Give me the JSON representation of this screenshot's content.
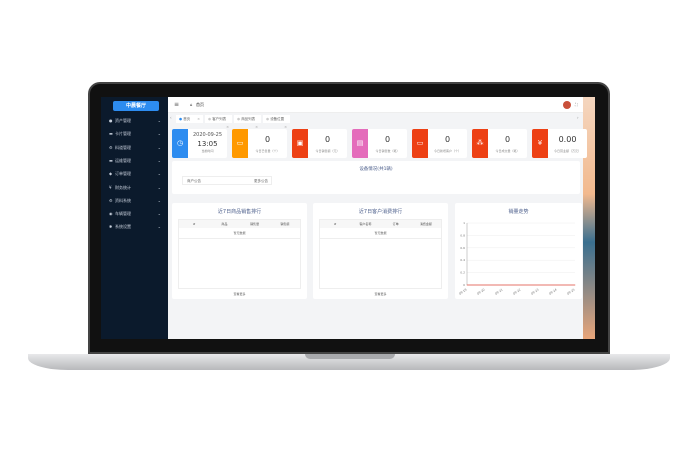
{
  "sidebar": {
    "logo": "中晨餐厅",
    "items": [
      {
        "label": "资产管理",
        "icon": "user-icon"
      },
      {
        "label": "卡片管理",
        "icon": "card-icon"
      },
      {
        "label": "料道管理",
        "icon": "gear-icon"
      },
      {
        "label": "运维管理",
        "icon": "wrench-icon"
      },
      {
        "label": "订单管理",
        "icon": "order-icon"
      },
      {
        "label": "财务统计",
        "icon": "yen-icon"
      },
      {
        "label": "资料系统",
        "icon": "gear-icon"
      },
      {
        "label": "车辆管理",
        "icon": "car-icon"
      },
      {
        "label": "系统设置",
        "icon": "settings-icon"
      }
    ]
  },
  "header": {
    "breadcrumb": "首页"
  },
  "tabs": [
    "首页",
    "客户列表",
    "商品列表",
    "设备位置"
  ],
  "cards": [
    {
      "value": "2020-09-25",
      "time": "13:05",
      "label": "当前时间",
      "color": "#2d8cf0",
      "icon": "clock-icon"
    },
    {
      "value": "0",
      "label": "今日已售量（个）",
      "color": "#ff9900",
      "icon": "box-icon"
    },
    {
      "value": "0",
      "label": "今日销售额（元）",
      "color": "#ed4014",
      "icon": "bag-icon"
    },
    {
      "value": "0",
      "label": "今日销售数（笔）",
      "color": "#e46cbb",
      "icon": "chat-icon"
    },
    {
      "value": "0",
      "label": "今日新增客户（个）",
      "color": "#ed4014",
      "icon": "box-icon"
    },
    {
      "value": "0",
      "label": "今日成交量（笔）",
      "color": "#ed4014",
      "icon": "nodes-icon"
    },
    {
      "value": "0.00",
      "label": "今日营业额（万元）",
      "color": "#ed4014",
      "icon": "yen-icon"
    }
  ],
  "status": {
    "title": "设备情况(共1辆)",
    "notice": "商户公告",
    "more": "更多公告"
  },
  "panels": [
    {
      "title": "近7日商品销售排行",
      "cols": [
        "#",
        "商品",
        "销售量",
        "销售额"
      ],
      "empty": "暂无数据",
      "more": "查看更多"
    },
    {
      "title": "近7日客户消费排行",
      "cols": [
        "#",
        "客户名称",
        "订单",
        "消费金额"
      ],
      "empty": "暂无数据",
      "more": "查看更多"
    }
  ],
  "chart_data": {
    "type": "line",
    "title": "销量走势",
    "categories": [
      "09-19",
      "09-20",
      "09-21",
      "09-22",
      "09-23",
      "09-24",
      "09-25"
    ],
    "values": [
      0,
      0,
      0,
      0,
      0,
      0,
      0
    ],
    "ylim": [
      0,
      1
    ],
    "yticks": [
      "0",
      "0.2",
      "0.4",
      "0.6",
      "0.8",
      "1"
    ],
    "grid": true,
    "color": "#e57368"
  }
}
